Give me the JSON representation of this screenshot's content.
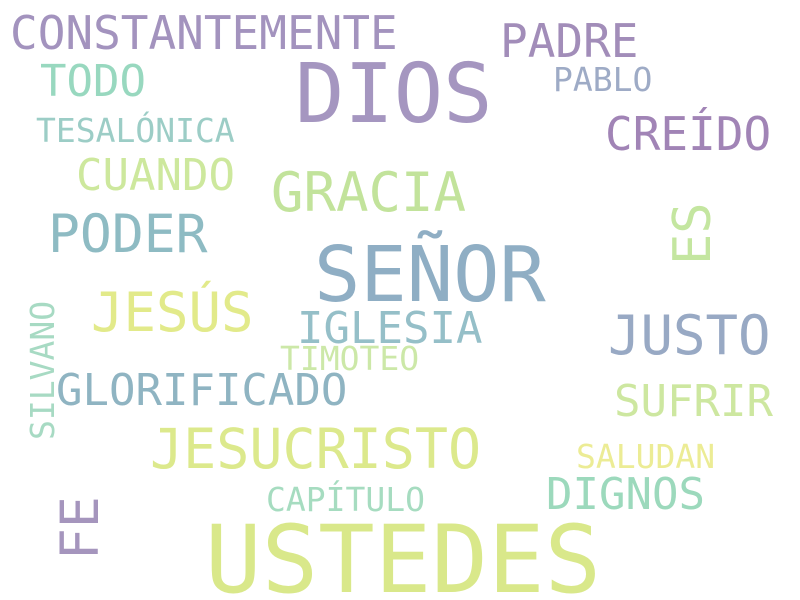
{
  "words": {
    "ustedes": {
      "text": "USTEDES",
      "color": "#d9e88a"
    },
    "dios": {
      "text": "DIOS",
      "color": "#a596c0"
    },
    "senor": {
      "text": "SEÑOR",
      "color": "#8faec4"
    },
    "jesucristo": {
      "text": "JESUCRISTO",
      "color": "#dce98c"
    },
    "gracia": {
      "text": "GRACIA",
      "color": "#c2e39b"
    },
    "poder": {
      "text": "PODER",
      "color": "#8ebbc3"
    },
    "jesus": {
      "text": "JESÚS",
      "color": "#e2ea8a"
    },
    "justo": {
      "text": "JUSTO",
      "color": "#98a9c4"
    },
    "glorificado": {
      "text": "GLORIFICADO",
      "color": "#8fb4c2"
    },
    "constantemente": {
      "text": "CONSTANTEMENTE",
      "color": "#a393be"
    },
    "creido": {
      "text": "CREÍDO",
      "color": "#a184b6"
    },
    "padre": {
      "text": "PADRE",
      "color": "#a28db9"
    },
    "iglesia": {
      "text": "IGLESIA",
      "color": "#95bfc8"
    },
    "todo": {
      "text": "TODO",
      "color": "#98d8bf"
    },
    "cuando": {
      "text": "CUANDO",
      "color": "#cde89d"
    },
    "dignos": {
      "text": "DIGNOS",
      "color": "#9cd9bc"
    },
    "sufrir": {
      "text": "SUFRIR",
      "color": "#cde7a0"
    },
    "es": {
      "text": "ES",
      "color": "#c4e6a0"
    },
    "fe": {
      "text": "FE",
      "color": "#a595bd"
    },
    "tesalonica": {
      "text": "TESALÓNICA",
      "color": "#9ccdc6"
    },
    "pablo": {
      "text": "PABLO",
      "color": "#9eabc6"
    },
    "capitulo": {
      "text": "CAPÍTULO",
      "color": "#a6dcc0"
    },
    "saludan": {
      "text": "SALUDAN",
      "color": "#ecec95"
    },
    "timoteo": {
      "text": "TIMOTEO",
      "color": "#cce8a8"
    },
    "silvano": {
      "text": "SILVANO",
      "color": "#a7dac3"
    }
  }
}
